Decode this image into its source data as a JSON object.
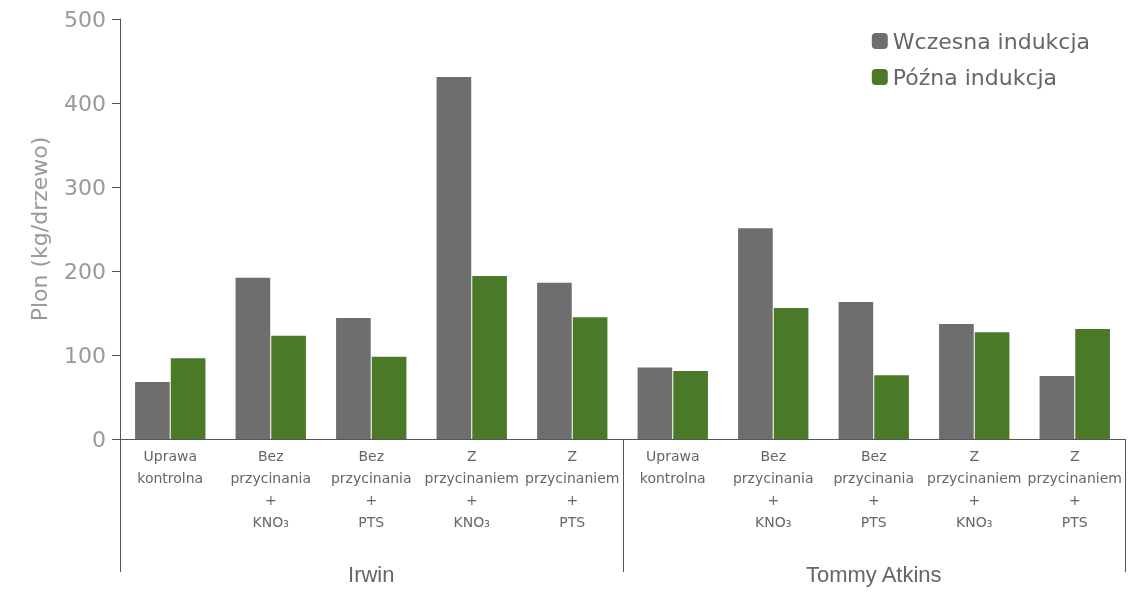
{
  "chart_data": {
    "type": "bar",
    "ylabel": "Plon (kg/drzewo)",
    "categories": [
      "Uprawa\nkontrolna",
      "Bez\nprzycinania\n+\nKNO₃",
      "Bez\nprzycinania\n+\nPTS",
      "Z\nprzycinaniem\n+\nKNO₃",
      "Z\nprzycinaniem\n+\nPTS",
      "Uprawa\nkontrolna",
      "Bez\nprzycinania\n+\nKNO₃",
      "Bez\nprzycinania\n+\nPTS",
      "Z\nprzycinaniem\n+\nKNO₃",
      "Z\nprzycinaniem\n+\nPTS"
    ],
    "series": [
      {
        "name": "Wczesna indukcja",
        "color": "#6d6e6d",
        "values": [
          68,
          192,
          144,
          431,
          186,
          85,
          251,
          163,
          137,
          75
        ]
      },
      {
        "name": "Późna indukcja",
        "color": "#4a7a28",
        "values": [
          96,
          123,
          98,
          194,
          145,
          81,
          156,
          76,
          127,
          131
        ]
      }
    ],
    "annotations": [
      "Irwin",
      "Tommy Atkins"
    ],
    "ylim": [
      0,
      500
    ],
    "yticks": [
      0,
      100,
      200,
      300,
      400,
      500
    ],
    "grid": false,
    "legend": "top right"
  }
}
